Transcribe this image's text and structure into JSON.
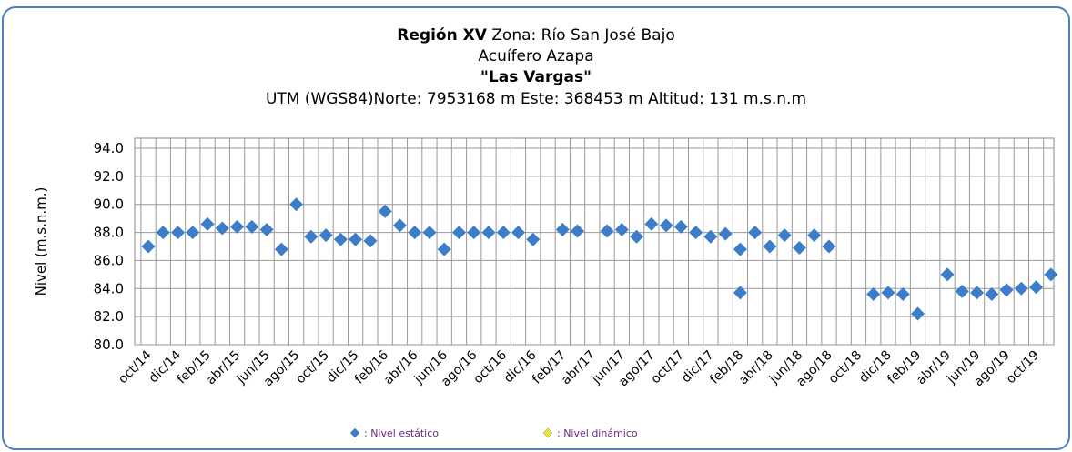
{
  "chart_data": {
    "type": "scatter",
    "title_lines": [
      [
        "Región XV",
        " Zona: Río San José Bajo"
      ],
      [
        "Acuífero Azapa"
      ],
      [
        "\"Las Vargas\""
      ],
      [
        "UTM (WGS84)Norte: 7953168 m Este: 368453 m  Altitud: 131 m.s.n.m"
      ]
    ],
    "ylabel": "Nivel (m.s.n.m.)",
    "categories": [
      "oct/14",
      null,
      "dic/14",
      null,
      "feb/15",
      null,
      "abr/15",
      null,
      "jun/15",
      null,
      "ago/15",
      null,
      "oct/15",
      null,
      "dic/15",
      null,
      "feb/16",
      null,
      "abr/16",
      null,
      "jun/16",
      null,
      "ago/16",
      null,
      "oct/16",
      null,
      "dic/16",
      null,
      "feb/17",
      null,
      "abr/17",
      null,
      "jun/17",
      null,
      "ago/17",
      null,
      "oct/17",
      null,
      "dic/17",
      null,
      "feb/18",
      null,
      "abr/18",
      null,
      "jun/18",
      null,
      "ago/18",
      null,
      "oct/18",
      null,
      "dic/18",
      null,
      "feb/19",
      null,
      "abr/19",
      null,
      "jun/19",
      null,
      "ago/19",
      null,
      "oct/19",
      null
    ],
    "series": [
      {
        "name": ": Nivel estático",
        "color": "#3b7dc8",
        "values": [
          87.0,
          88.0,
          88.0,
          88.0,
          88.6,
          88.3,
          88.4,
          88.4,
          88.2,
          86.8,
          90.0,
          87.7,
          87.8,
          87.5,
          87.5,
          87.4,
          89.5,
          88.5,
          88.0,
          88.0,
          86.8,
          88.0,
          88.0,
          88.0,
          88.0,
          88.0,
          87.5,
          null,
          88.2,
          88.1,
          null,
          88.1,
          88.2,
          87.7,
          88.6,
          88.5,
          88.4,
          88.0,
          87.7,
          87.9,
          86.8,
          88.0,
          87.0,
          87.8,
          86.9,
          87.8,
          87.0,
          null,
          null,
          83.6,
          83.7,
          83.6,
          82.2,
          null,
          85.0,
          83.8,
          83.7,
          83.6,
          83.9,
          84.0,
          84.1,
          85.0
        ]
      },
      {
        "color": "#3b7dc8",
        "values": [
          null,
          null,
          null,
          null,
          null,
          null,
          null,
          null,
          null,
          null,
          null,
          null,
          null,
          null,
          null,
          null,
          null,
          null,
          null,
          null,
          null,
          null,
          null,
          null,
          null,
          null,
          null,
          null,
          null,
          null,
          null,
          null,
          null,
          null,
          null,
          null,
          null,
          null,
          null,
          null,
          83.7,
          null,
          null,
          null,
          null,
          null,
          null,
          null,
          null,
          null,
          null,
          null,
          null,
          null,
          null,
          null,
          null,
          null,
          null,
          null,
          null,
          null
        ]
      },
      {
        "name": ": Nivel dinámico",
        "color": "#e6e632",
        "values": [
          null,
          null,
          null,
          null,
          null,
          null,
          null,
          null,
          null,
          null,
          null,
          null,
          null,
          null,
          null,
          null,
          null,
          null,
          null,
          null,
          null,
          null,
          null,
          null,
          null,
          null,
          null,
          null,
          null,
          null,
          null,
          null,
          null,
          null,
          null,
          null,
          null,
          null,
          null,
          null,
          null,
          null,
          null,
          null,
          null,
          null,
          null,
          null,
          null,
          null,
          null,
          null,
          null,
          null,
          null,
          null,
          null,
          null,
          null,
          null,
          null,
          null
        ]
      }
    ],
    "ylim": [
      80,
      94
    ],
    "yticks": [
      {
        "value": 80,
        "label": "80.0"
      },
      {
        "value": 82,
        "label": "82.0"
      },
      {
        "value": 84,
        "label": "84.0"
      },
      {
        "value": 86,
        "label": "86.0"
      },
      {
        "value": 88,
        "label": "88.0"
      },
      {
        "value": 90,
        "label": "90.0"
      },
      {
        "value": 92,
        "label": "92.0"
      },
      {
        "value": 94,
        "label": "94.0"
      }
    ],
    "grid": true
  }
}
